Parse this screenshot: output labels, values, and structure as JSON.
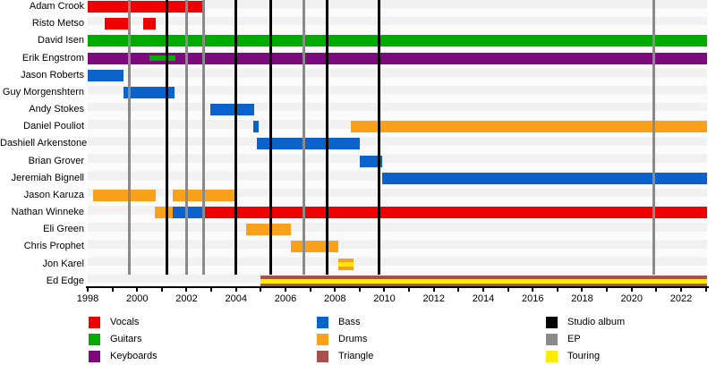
{
  "chart_data": {
    "type": "timeline",
    "description": "Band members timeline (Gantt-style) with studio album and EP release lines",
    "x_axis": {
      "min": 1998,
      "max": 2023.05,
      "minor_tick_step": 1,
      "labeled_ticks": [
        1998,
        2000,
        2002,
        2004,
        2006,
        2008,
        2010,
        2012,
        2014,
        2016,
        2018,
        2020,
        2022
      ]
    },
    "colors": {
      "Vocals": "#ee0000",
      "Guitars": "#00ab00",
      "Keyboards": "#7d0a7d",
      "Bass": "#0b62ca",
      "Drums": "#f9a11b",
      "Triangle": "#a85050",
      "Studio album": "#000000",
      "EP": "#8a8a8a",
      "Touring": "#ffeb00"
    },
    "rows": [
      {
        "name": "Adam Crook",
        "segments": [
          {
            "role": "Vocals",
            "start": 1998.0,
            "end": 2002.7
          }
        ]
      },
      {
        "name": "Risto Metso",
        "segments": [
          {
            "role": "Vocals",
            "start": 1998.7,
            "end": 1999.7
          },
          {
            "role": "Vocals",
            "start": 2000.25,
            "end": 2000.75
          }
        ]
      },
      {
        "name": "David Isen",
        "segments": [
          {
            "role": "Guitars",
            "start": 1998.0,
            "end": 2023.05
          }
        ]
      },
      {
        "name": "Erik Engstrom",
        "segments": [
          {
            "role": "Keyboards",
            "start": 1998.0,
            "end": 2023.05
          }
        ],
        "overlays": [
          {
            "role": "Guitars",
            "start": 2000.5,
            "end": 2001.55
          }
        ]
      },
      {
        "name": "Jason Roberts",
        "segments": [
          {
            "role": "Bass",
            "start": 1998.0,
            "end": 1999.45
          }
        ]
      },
      {
        "name": "Guy Morgenshtern",
        "segments": [
          {
            "role": "Bass",
            "start": 1999.45,
            "end": 2001.5
          }
        ]
      },
      {
        "name": "Andy Stokes",
        "segments": [
          {
            "role": "Bass",
            "start": 2002.95,
            "end": 2004.75
          }
        ]
      },
      {
        "name": "Daniel Pouliot",
        "segments": [
          {
            "role": "Bass",
            "start": 2004.7,
            "end": 2004.9
          },
          {
            "role": "Drums",
            "start": 2008.65,
            "end": 2023.05
          }
        ]
      },
      {
        "name": "Dashiell Arkenstone",
        "segments": [
          {
            "role": "Bass",
            "start": 2004.85,
            "end": 2009.0
          }
        ]
      },
      {
        "name": "Brian Grover",
        "segments": [
          {
            "role": "Bass",
            "start": 2009.0,
            "end": 2009.9
          }
        ]
      },
      {
        "name": "Jeremiah Bignell",
        "segments": [
          {
            "role": "Bass",
            "start": 2009.9,
            "end": 2023.05
          }
        ]
      },
      {
        "name": "Jason Karuza",
        "segments": [
          {
            "role": "Drums",
            "start": 1998.2,
            "end": 2000.75
          },
          {
            "role": "Drums",
            "start": 2001.45,
            "end": 2004.05
          }
        ]
      },
      {
        "name": "Nathan Winneke",
        "segments": [
          {
            "role": "Drums",
            "start": 2000.7,
            "end": 2001.45
          },
          {
            "role": "Bass",
            "start": 2001.45,
            "end": 2002.75
          },
          {
            "role": "Vocals",
            "start": 2002.75,
            "end": 2023.05
          }
        ]
      },
      {
        "name": "Eli Green",
        "segments": [
          {
            "role": "Drums",
            "start": 2004.4,
            "end": 2006.2
          }
        ]
      },
      {
        "name": "Chris Prophet",
        "segments": [
          {
            "role": "Drums",
            "start": 2006.2,
            "end": 2008.15
          }
        ]
      },
      {
        "name": "Jon Karel",
        "segments": [
          {
            "role": "Drums",
            "start": 2008.15,
            "end": 2008.75,
            "overlay": "Touring"
          }
        ]
      },
      {
        "name": "Ed Edge",
        "segments": [
          {
            "role": "Triangle",
            "start": 2005.0,
            "end": 2023.05,
            "overlay": "Touring"
          }
        ]
      }
    ],
    "events": [
      {
        "type": "EP",
        "year": 1999.7
      },
      {
        "type": "Studio album",
        "year": 2001.2
      },
      {
        "type": "EP",
        "year": 2002.0
      },
      {
        "type": "EP",
        "year": 2002.7
      },
      {
        "type": "Studio album",
        "year": 2004.0
      },
      {
        "type": "Studio album",
        "year": 2005.4
      },
      {
        "type": "EP",
        "year": 2006.75
      },
      {
        "type": "Studio album",
        "year": 2007.7
      },
      {
        "type": "Studio album",
        "year": 2009.8
      },
      {
        "type": "EP",
        "year": 2020.9
      }
    ],
    "legend": {
      "columns": [
        {
          "items": [
            {
              "label": "Vocals"
            },
            {
              "label": "Guitars"
            },
            {
              "label": "Keyboards"
            }
          ]
        },
        {
          "items": [
            {
              "label": "Bass"
            },
            {
              "label": "Drums"
            },
            {
              "label": "Triangle"
            }
          ]
        },
        {
          "items": [
            {
              "label": "Studio album"
            },
            {
              "label": "EP"
            },
            {
              "label": "Touring"
            }
          ]
        }
      ]
    }
  }
}
